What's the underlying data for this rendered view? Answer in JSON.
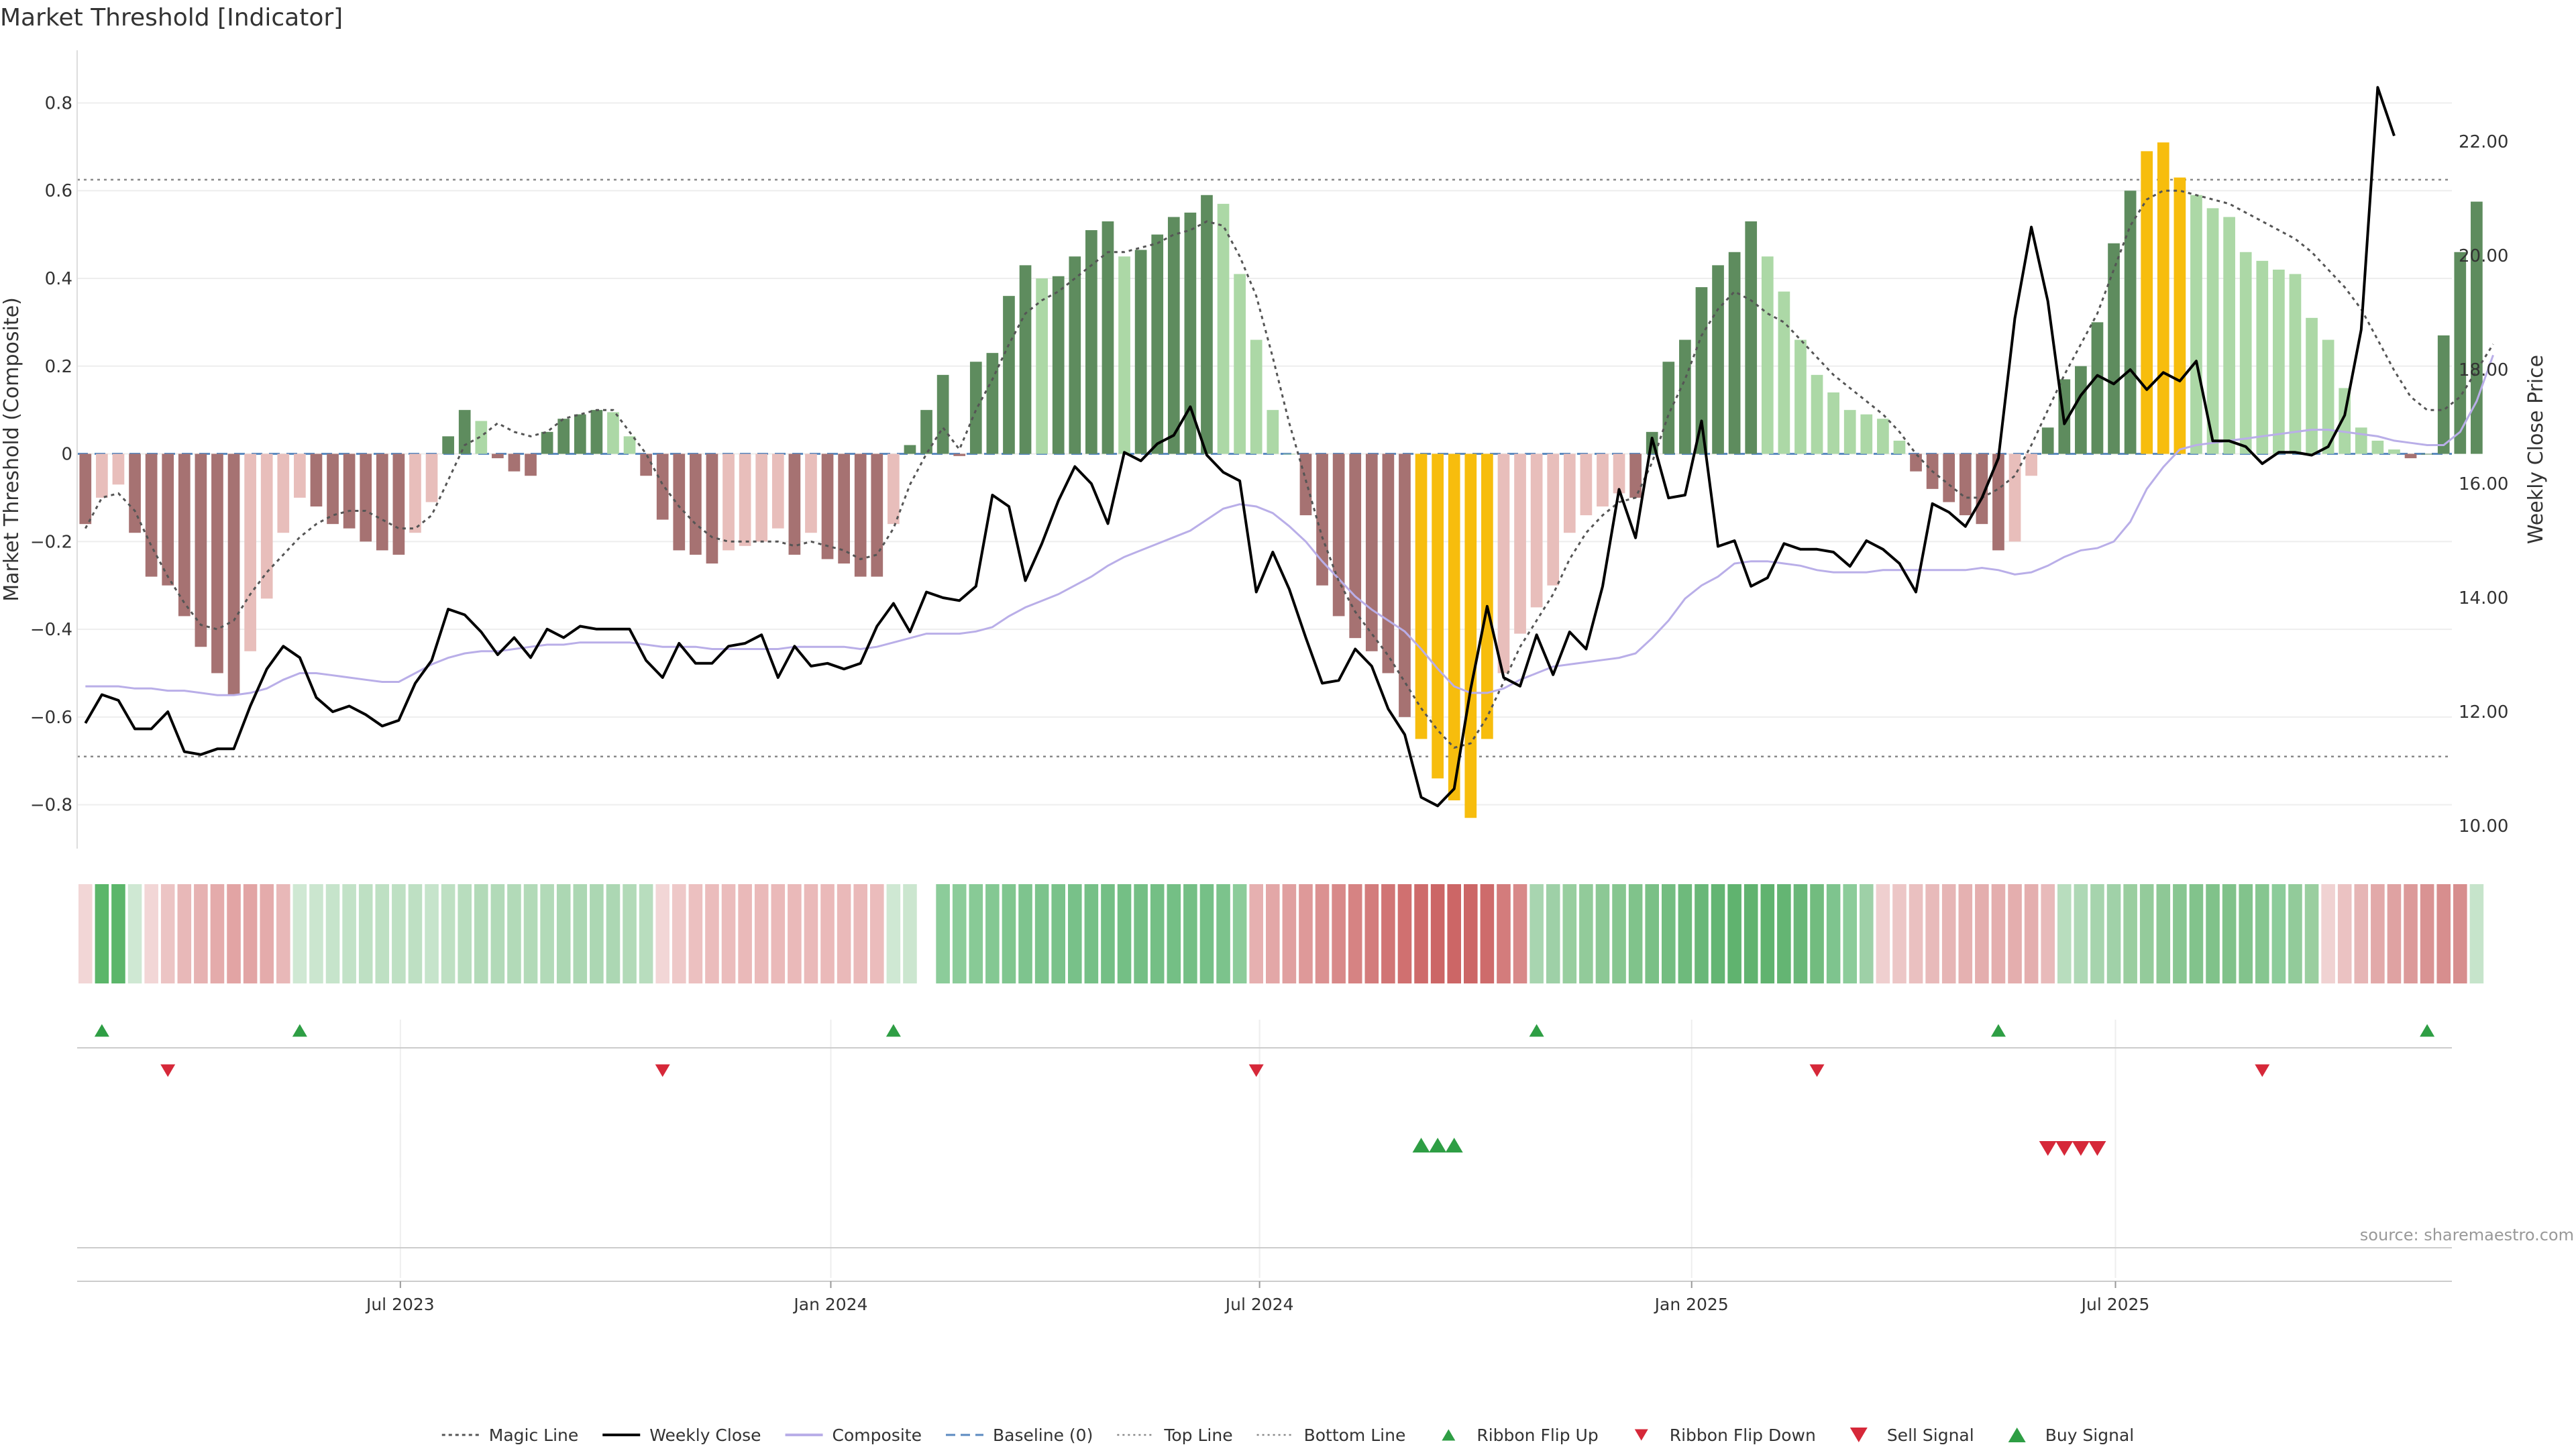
{
  "chart_data": {
    "type": "bar",
    "title": "Market Threshold [Indicator]",
    "ylabel_left": "Market Threshold (Composite)",
    "ylabel_right": "Weekly Close Price",
    "ylim_left": [
      -0.9,
      0.92
    ],
    "ylim_right": [
      9.6,
      23.6
    ],
    "yticks_left": [
      -0.8,
      -0.6,
      -0.4,
      -0.2,
      0,
      0.2,
      0.4,
      0.6,
      0.8
    ],
    "yticks_right": [
      10.0,
      12.0,
      14.0,
      16.0,
      18.0,
      20.0,
      22.0
    ],
    "ytick_labels_left": [
      "−0.8",
      "−0.6",
      "−0.4",
      "−0.2",
      "0",
      "0.2",
      "0.4",
      "0.6",
      "0.8"
    ],
    "ytick_labels_right": [
      "10.00",
      "12.00",
      "14.00",
      "16.00",
      "18.00",
      "20.00",
      "22.00"
    ],
    "x_weeks": 144,
    "xticks": [
      {
        "label": "Jul 2023",
        "week": 19.6
      },
      {
        "label": "Jan 2024",
        "week": 45.7
      },
      {
        "label": "Jul 2024",
        "week": 71.7
      },
      {
        "label": "Jan 2025",
        "week": 97.9
      },
      {
        "label": "Jul 2025",
        "week": 123.6
      }
    ],
    "top_line": 0.625,
    "bottom_line": -0.69,
    "composite_values": [
      -0.16,
      -0.1,
      -0.07,
      -0.18,
      -0.28,
      -0.3,
      -0.37,
      -0.44,
      -0.5,
      -0.55,
      -0.45,
      -0.33,
      -0.18,
      -0.1,
      -0.12,
      -0.16,
      -0.17,
      -0.2,
      -0.22,
      -0.23,
      -0.18,
      -0.11,
      0.04,
      0.1,
      0.075,
      -0.01,
      -0.04,
      -0.05,
      0.05,
      0.08,
      0.09,
      0.1,
      0.095,
      0.04,
      -0.05,
      -0.15,
      -0.22,
      -0.23,
      -0.25,
      -0.22,
      -0.21,
      -0.2,
      -0.17,
      -0.23,
      -0.18,
      -0.24,
      -0.25,
      -0.28,
      -0.28,
      -0.16,
      0.02,
      0.1,
      0.18,
      -0.005,
      0.21,
      0.23,
      0.36,
      0.43,
      0.4,
      0.405,
      0.45,
      0.51,
      0.53,
      0.45,
      0.465,
      0.5,
      0.54,
      0.55,
      0.59,
      0.57,
      0.41,
      0.26,
      0.1,
      0,
      -0.14,
      -0.3,
      -0.37,
      -0.42,
      -0.45,
      -0.5,
      -0.6,
      -0.65,
      -0.74,
      -0.79,
      -0.83,
      -0.65,
      -0.5,
      -0.41,
      -0.35,
      -0.3,
      -0.18,
      -0.14,
      -0.12,
      -0.09,
      -0.1,
      0.05,
      0.21,
      0.26,
      0.38,
      0.43,
      0.46,
      0.53,
      0.45,
      0.37,
      0.26,
      0.18,
      0.14,
      0.1,
      0.09,
      0.08,
      0.03,
      -0.04,
      -0.08,
      -0.11,
      -0.14,
      -0.16,
      -0.22,
      -0.2,
      -0.05,
      0.06,
      0.17,
      0.2,
      0.3,
      0.48,
      0.6,
      0.69,
      0.71,
      0.63,
      0.59,
      0.56,
      0.54,
      0.46,
      0.44,
      0.42,
      0.41,
      0.31,
      0.26,
      0.15,
      0.06,
      0.03,
      0.01,
      -0.01,
      0,
      0.27,
      0.46,
      0.575
    ],
    "magic_line": [
      -0.17,
      -0.1,
      -0.09,
      -0.13,
      -0.21,
      -0.28,
      -0.34,
      -0.39,
      -0.4,
      -0.38,
      -0.32,
      -0.27,
      -0.23,
      -0.19,
      -0.16,
      -0.14,
      -0.13,
      -0.13,
      -0.15,
      -0.17,
      -0.17,
      -0.14,
      -0.06,
      0.02,
      0.04,
      0.07,
      0.05,
      0.04,
      0.05,
      0.08,
      0.09,
      0.1,
      0.1,
      0.05,
      0,
      -0.07,
      -0.12,
      -0.16,
      -0.19,
      -0.2,
      -0.2,
      -0.2,
      -0.2,
      -0.21,
      -0.2,
      -0.21,
      -0.22,
      -0.24,
      -0.23,
      -0.17,
      -0.07,
      0,
      0.06,
      0.01,
      0.1,
      0.17,
      0.25,
      0.32,
      0.35,
      0.37,
      0.4,
      0.43,
      0.46,
      0.46,
      0.47,
      0.48,
      0.5,
      0.51,
      0.53,
      0.52,
      0.45,
      0.36,
      0.22,
      0.07,
      -0.06,
      -0.19,
      -0.29,
      -0.36,
      -0.41,
      -0.46,
      -0.52,
      -0.58,
      -0.63,
      -0.67,
      -0.66,
      -0.6,
      -0.52,
      -0.44,
      -0.38,
      -0.32,
      -0.24,
      -0.18,
      -0.14,
      -0.11,
      -0.1,
      -0.02,
      0.09,
      0.17,
      0.27,
      0.33,
      0.37,
      0.35,
      0.32,
      0.3,
      0.26,
      0.22,
      0.18,
      0.15,
      0.12,
      0.09,
      0.05,
      0,
      -0.04,
      -0.07,
      -0.1,
      -0.1,
      -0.08,
      -0.05,
      0.02,
      0.1,
      0.18,
      0.25,
      0.32,
      0.42,
      0.52,
      0.58,
      0.6,
      0.6,
      0.59,
      0.58,
      0.57,
      0.55,
      0.53,
      0.51,
      0.49,
      0.46,
      0.42,
      0.38,
      0.33,
      0.26,
      0.19,
      0.13,
      0.1,
      0.1,
      0.13,
      0.19,
      0.25
    ],
    "weekly_close": [
      11.8,
      12.3,
      12.2,
      11.7,
      11.7,
      12.0,
      11.3,
      11.25,
      11.35,
      11.35,
      12.1,
      12.75,
      13.15,
      12.95,
      12.25,
      12.0,
      12.1,
      11.95,
      11.75,
      11.85,
      12.5,
      12.9,
      13.8,
      13.7,
      13.4,
      13.0,
      13.3,
      12.95,
      13.45,
      13.3,
      13.5,
      13.45,
      13.45,
      13.45,
      12.9,
      12.6,
      13.2,
      12.85,
      12.85,
      13.15,
      13.2,
      13.35,
      12.6,
      13.15,
      12.8,
      12.85,
      12.75,
      12.85,
      13.5,
      13.9,
      13.4,
      14.1,
      14.0,
      13.95,
      14.2,
      15.8,
      15.6,
      14.3,
      14.95,
      15.7,
      16.3,
      16.0,
      15.3,
      16.55,
      16.4,
      16.7,
      16.85,
      17.35,
      16.5,
      16.2,
      16.05,
      14.1,
      14.8,
      14.15,
      13.3,
      12.5,
      12.55,
      13.1,
      12.8,
      12.05,
      11.6,
      10.5,
      10.35,
      10.65,
      12.4,
      13.85,
      12.6,
      12.45,
      13.35,
      12.65,
      13.4,
      13.1,
      14.2,
      15.9,
      15.05,
      16.8,
      15.75,
      15.8,
      17.1,
      14.9,
      15.0,
      14.2,
      14.35,
      14.95,
      14.85,
      14.85,
      14.8,
      14.55,
      15.0,
      14.85,
      14.6,
      14.1,
      15.65,
      15.5,
      15.25,
      15.75,
      16.45,
      18.9,
      20.5,
      19.2,
      17.05,
      17.55,
      17.9,
      17.75,
      18.0,
      17.65,
      17.95,
      17.8,
      18.15,
      16.75,
      16.75,
      16.65,
      16.35,
      16.55,
      16.55,
      16.5,
      16.65,
      17.2,
      18.7,
      22.95,
      22.1
    ],
    "composite_line": [
      -0.53,
      -0.53,
      -0.53,
      -0.535,
      -0.535,
      -0.54,
      -0.54,
      -0.545,
      -0.55,
      -0.55,
      -0.545,
      -0.535,
      -0.515,
      -0.5,
      -0.5,
      -0.505,
      -0.51,
      -0.515,
      -0.52,
      -0.52,
      -0.5,
      -0.48,
      -0.465,
      -0.455,
      -0.45,
      -0.45,
      -0.445,
      -0.44,
      -0.435,
      -0.435,
      -0.43,
      -0.43,
      -0.43,
      -0.43,
      -0.435,
      -0.44,
      -0.44,
      -0.44,
      -0.445,
      -0.445,
      -0.445,
      -0.445,
      -0.445,
      -0.44,
      -0.44,
      -0.44,
      -0.44,
      -0.445,
      -0.44,
      -0.43,
      -0.42,
      -0.41,
      -0.41,
      -0.41,
      -0.405,
      -0.395,
      -0.37,
      -0.35,
      -0.335,
      -0.32,
      -0.3,
      -0.28,
      -0.255,
      -0.235,
      -0.22,
      -0.205,
      -0.19,
      -0.175,
      -0.15,
      -0.125,
      -0.115,
      -0.12,
      -0.135,
      -0.165,
      -0.2,
      -0.245,
      -0.285,
      -0.325,
      -0.355,
      -0.38,
      -0.405,
      -0.445,
      -0.49,
      -0.53,
      -0.545,
      -0.545,
      -0.535,
      -0.515,
      -0.5,
      -0.485,
      -0.48,
      -0.475,
      -0.47,
      -0.465,
      -0.455,
      -0.42,
      -0.38,
      -0.33,
      -0.3,
      -0.28,
      -0.25,
      -0.245,
      -0.245,
      -0.25,
      -0.255,
      -0.265,
      -0.27,
      -0.27,
      -0.27,
      -0.265,
      -0.265,
      -0.265,
      -0.265,
      -0.265,
      -0.265,
      -0.26,
      -0.265,
      -0.275,
      -0.27,
      -0.255,
      -0.235,
      -0.22,
      -0.215,
      -0.2,
      -0.155,
      -0.08,
      -0.03,
      0.01,
      0.02,
      0.025,
      0.03,
      0.035,
      0.04,
      0.045,
      0.05,
      0.055,
      0.055,
      0.05,
      0.045,
      0.04,
      0.03,
      0.025,
      0.02,
      0.02,
      0.05,
      0.12,
      0.225
    ],
    "ribbon": [
      "#f2d6d6",
      "#5bb66a",
      "#5bb66a",
      "#cfe8d3",
      "#f2d6d6",
      "#ecc4c4",
      "#e8b8b8",
      "#e6b2b2",
      "#e4abab",
      "#e2a4a4",
      "#e2a4a4",
      "#e4abab",
      "#e8b8b8",
      "#cfe8d3",
      "#cbe6cf",
      "#c6e4cb",
      "#c2e2c7",
      "#bee0c3",
      "#bee0c3",
      "#bee0c3",
      "#bee0c3",
      "#c6e4cb",
      "#bee0c3",
      "#b8ddbe",
      "#b2dab8",
      "#b2dab8",
      "#b2dab8",
      "#b2dab8",
      "#b2dab8",
      "#acd7b3",
      "#acd7b3",
      "#acd7b3",
      "#acd7b3",
      "#b2dab8",
      "#b8ddbe",
      "#f2d6d6",
      "#eec8c8",
      "#ecc0c0",
      "#ebbcbc",
      "#ebbcbc",
      "#eab9b9",
      "#eab9b9",
      "#eab9b9",
      "#eab9b9",
      "#eab9b9",
      "#eab9b9",
      "#eab9b9",
      "#eab9b9",
      "#ebbcbc",
      "#cfe8d3",
      "#cbe6cf",
      "#ffffff",
      "#8ccc9a",
      "#8ccc9a",
      "#88ca96",
      "#84c893",
      "#80c68f",
      "#7ec48e",
      "#7cc38c",
      "#7ac28a",
      "#78c189",
      "#76c087",
      "#74bf85",
      "#74bf85",
      "#74bf85",
      "#74bf85",
      "#74bf85",
      "#74bf85",
      "#76c087",
      "#7cc38c",
      "#8ccc9a",
      "#e6b0b0",
      "#e3a7a7",
      "#e0a0a0",
      "#de9999",
      "#db9191",
      "#d88989",
      "#d68383",
      "#d37c7c",
      "#d17575",
      "#d07070",
      "#ce6b6b",
      "#cc6666",
      "#cc6666",
      "#cc6666",
      "#ce6b6b",
      "#d37c7c",
      "#d88989",
      "#a8d5b0",
      "#9ed0a7",
      "#98ce9f",
      "#92cb9a",
      "#8cc895",
      "#86c690",
      "#80c38b",
      "#7ac086",
      "#74bd81",
      "#6eba7c",
      "#69b778",
      "#64b573",
      "#60b36f",
      "#60b36f",
      "#60b36f",
      "#64b573",
      "#69b778",
      "#72bc7f",
      "#7ec48e",
      "#8ccc9a",
      "#9ed0a7",
      "#efcfcf",
      "#ecc6c6",
      "#eac0c0",
      "#e8baba",
      "#e6b5b5",
      "#e5b1b1",
      "#e4aeae",
      "#e4aeae",
      "#e4aeae",
      "#e4aeae",
      "#e8baba",
      "#b8ddbe",
      "#aed8b5",
      "#a6d4ad",
      "#a0d1a8",
      "#9ace9f",
      "#94cb9b",
      "#8ec896",
      "#88c691",
      "#82c38c",
      "#80c28a",
      "#80c28a",
      "#82c38c",
      "#86c690",
      "#8ccc9a",
      "#92cb9a",
      "#9ace9f",
      "#f0d2d2",
      "#ebc2c2",
      "#e6b5b5",
      "#e2a9a9",
      "#dfa2a2",
      "#dc9a9a",
      "#d99393",
      "#d78e8e",
      "#d78e8e",
      "#c6e4cb"
    ],
    "ribbon_flip_up_weeks": [
      1,
      13,
      49,
      88,
      116,
      142
    ],
    "ribbon_flip_down_weeks": [
      5,
      35,
      71,
      105,
      132
    ],
    "buy_signal_weeks": [
      81,
      82,
      83
    ],
    "sell_signal_weeks": [
      119,
      120,
      121,
      122
    ],
    "legend": [
      {
        "label": "Magic Line",
        "kind": "dotted",
        "color": "#555555"
      },
      {
        "label": "Weekly Close",
        "kind": "line",
        "color": "#000000"
      },
      {
        "label": "Composite",
        "kind": "line",
        "color": "#b9aee8"
      },
      {
        "label": "Baseline (0)",
        "kind": "dashed",
        "color": "#5b8ac0"
      },
      {
        "label": "Top Line",
        "kind": "dotted-light",
        "color": "#888888"
      },
      {
        "label": "Bottom Line",
        "kind": "dotted-light",
        "color": "#888888"
      },
      {
        "label": "Ribbon Flip Up",
        "kind": "tri-up",
        "color": "#2e9e44"
      },
      {
        "label": "Ribbon Flip Down",
        "kind": "tri-down",
        "color": "#d62839"
      },
      {
        "label": "Sell Signal",
        "kind": "tri-down-big",
        "color": "#d62839"
      },
      {
        "label": "Buy Signal",
        "kind": "tri-up-big",
        "color": "#2e9e44"
      }
    ],
    "source": "source: sharemaestro.com",
    "colors": {
      "pos_dark": "#5e8c5e",
      "pos_light": "#acd8a6",
      "neg_dark": "#a67272",
      "neg_light": "#e8bebb",
      "extreme": "#f7bd0d",
      "extreme_neg_light": "#e8b4b0"
    }
  }
}
